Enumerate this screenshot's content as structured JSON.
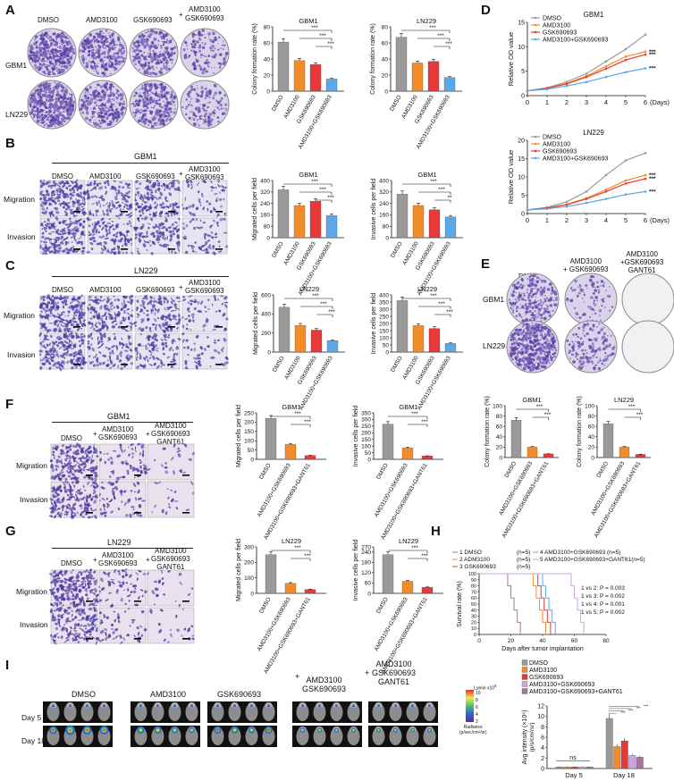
{
  "colors": {
    "grey": "#9a9a9a",
    "orange": "#f28c28",
    "red": "#e8393a",
    "blue": "#5aa8e8",
    "purple": "#c9a7df",
    "mauve": "#a5789a",
    "dark": "#7a7a7a"
  },
  "panels": [
    "A",
    "B",
    "C",
    "D",
    "E",
    "F",
    "G",
    "H",
    "I"
  ],
  "A": {
    "conditions": [
      "DMSO",
      "AMD3100",
      "GSK690693",
      "AMD3100\nGSK690693"
    ],
    "plus": "+",
    "rows": [
      "GBM1",
      "LN229"
    ],
    "charts": [
      {
        "title": "GBM1",
        "ylabel": "Colony formation rate (%)",
        "yticks": [
          "0",
          "20",
          "40",
          "60",
          "80"
        ],
        "ymax": 80,
        "categories": [
          "DMSO",
          "AMD3100",
          "GSK690693",
          "AMD3100+GSK690693"
        ],
        "values": [
          61,
          38,
          33,
          15
        ],
        "sig": [
          "***",
          "***",
          "***"
        ]
      },
      {
        "title": "LN229",
        "ylabel": "Colony formation rate (%)",
        "yticks": [
          "0",
          "20",
          "40",
          "60",
          "80"
        ],
        "ymax": 80,
        "categories": [
          "DMSO",
          "AMD3100",
          "GSK690693",
          "AMD3100+GSK690693"
        ],
        "values": [
          67,
          35,
          37,
          17
        ],
        "sig": [
          "***",
          "***",
          "***"
        ]
      }
    ]
  },
  "B": {
    "cell": "GBM1",
    "conditions": [
      "DMSO",
      "AMD3100",
      "GSK690693",
      "AMD3100\nGSK690693"
    ],
    "plus": "+",
    "rows": [
      "Migration",
      "Invasion"
    ],
    "charts": [
      {
        "title": "GBM1",
        "ylabel": "Migrated cells per field",
        "yticks": [
          "0",
          "80",
          "160",
          "240",
          "320",
          "400"
        ],
        "ymax": 400,
        "categories": [
          "DMSO",
          "AMD3100",
          "GSK690693",
          "AMD3100+GSK690693"
        ],
        "values": [
          335,
          225,
          255,
          155
        ],
        "sig": [
          "***",
          "***",
          "***"
        ]
      },
      {
        "title": "GBM1",
        "ylabel": "Invasive cells per field",
        "yticks": [
          "0",
          "80",
          "160",
          "240",
          "320",
          "400"
        ],
        "ymax": 400,
        "categories": [
          "DMSO",
          "AMD3100",
          "GSK690693",
          "AMD3100+GSK690693"
        ],
        "values": [
          305,
          225,
          195,
          145
        ],
        "sig": [
          "***",
          "***",
          "**"
        ]
      }
    ]
  },
  "C": {
    "cell": "LN229",
    "conditions": [
      "DMSO",
      "AMD3100",
      "GSK690693",
      "AMD3100\nGSK690693"
    ],
    "plus": "+",
    "rows": [
      "Migration",
      "Invasion"
    ],
    "charts": [
      {
        "title": "LN229",
        "ylabel": "Migrated cells per field",
        "yticks": [
          "0",
          "200",
          "400",
          "600"
        ],
        "ymax": 600,
        "categories": [
          "DMSO",
          "AMD3100",
          "GSK690693",
          "AMD3100+GSK690693"
        ],
        "values": [
          470,
          280,
          230,
          120
        ],
        "sig": [
          "***",
          "***",
          "***"
        ]
      },
      {
        "title": "LN229",
        "ylabel": "Invasive cells per field",
        "yticks": [
          "0",
          "50",
          "100",
          "150",
          "200",
          "250",
          "300",
          "350",
          "400"
        ],
        "ymax": 400,
        "categories": [
          "DMSO",
          "AMD3100",
          "GSK690693",
          "AMD3100+GSK690693"
        ],
        "values": [
          360,
          185,
          165,
          60
        ],
        "sig": [
          "***",
          "***",
          "***"
        ]
      }
    ]
  },
  "D": {
    "xlabel": "(Days)",
    "ylabel": "Relative OD value",
    "legend": [
      "DMSO",
      "AMD3100",
      "GSK690693",
      "AMD3100+GSK690693"
    ],
    "sig": [
      "***",
      "***",
      "***"
    ],
    "charts": [
      {
        "title": "GBM1",
        "yticks": [
          "0",
          "5",
          "10",
          "15"
        ],
        "ymax": 15,
        "xticks": [
          "0",
          "1",
          "2",
          "3",
          "4",
          "5",
          "6"
        ],
        "series": [
          [
            1,
            1.6,
            2.8,
            4.5,
            7.0,
            9.5,
            12.5
          ],
          [
            1,
            1.5,
            2.5,
            4.0,
            6.0,
            8.0,
            9.0
          ],
          [
            1,
            1.5,
            2.4,
            3.8,
            5.5,
            7.3,
            8.4
          ],
          [
            1,
            1.3,
            2.0,
            2.8,
            3.8,
            4.8,
            5.6
          ]
        ]
      },
      {
        "title": "LN229",
        "yticks": [
          "0",
          "5",
          "10",
          "15",
          "20"
        ],
        "ymax": 20,
        "xticks": [
          "0",
          "1",
          "2",
          "3",
          "4",
          "5",
          "6"
        ],
        "series": [
          [
            1,
            1.7,
            3.2,
            6.0,
            10.5,
            14.5,
            16.5
          ],
          [
            1,
            1.5,
            2.5,
            4.2,
            6.5,
            9.0,
            10.5
          ],
          [
            1,
            1.5,
            2.4,
            4.0,
            6.0,
            8.2,
            9.5
          ],
          [
            1,
            1.3,
            1.9,
            2.9,
            4.0,
            5.2,
            6.0
          ]
        ]
      }
    ]
  },
  "E": {
    "conditions": [
      "DMSO",
      "AMD3100\n+ GSK690693",
      "AMD3100\n+GSK690693\nGANT61"
    ],
    "rows": [
      "GBM1",
      "LN229"
    ],
    "charts": [
      {
        "title": "GBM1",
        "ylabel": "Colony formation rate (%)",
        "yticks": [
          "0",
          "20",
          "40",
          "60",
          "80",
          "100"
        ],
        "ymax": 100,
        "categories": [
          "DMSO",
          "AMD3100+GSK690693",
          "AMD3100+GSK690693+GANT61"
        ],
        "values": [
          72,
          20,
          7
        ],
        "sig": [
          "***",
          "***"
        ]
      },
      {
        "title": "LN229",
        "ylabel": "Colony formation rate (%)",
        "yticks": [
          "0",
          "20",
          "40",
          "60",
          "80",
          "100"
        ],
        "ymax": 100,
        "categories": [
          "DMSO",
          "AMD3100+GSK690693",
          "AMD3100+GSK690693+GANT61"
        ],
        "values": [
          65,
          20,
          6
        ],
        "sig": [
          "***",
          "***"
        ]
      }
    ]
  },
  "F": {
    "cell": "GBM1",
    "conditions": [
      "DMSO",
      "AMD3100\nGSK690693",
      "AMD3100\nGSK690693\nGANT61"
    ],
    "plus": "+",
    "rows": [
      "Migration",
      "Invasion"
    ],
    "charts": [
      {
        "title": "GBM1",
        "ylabel": "Migrated cells per field",
        "yticks": [
          "0",
          "50",
          "100",
          "150",
          "200",
          "250"
        ],
        "ymax": 250,
        "categories": [
          "DMSO",
          "AMD3100+GSK690693",
          "AMD3100+GSK690693+GANT61"
        ],
        "values": [
          220,
          80,
          20
        ],
        "sig": [
          "***",
          "***"
        ]
      },
      {
        "title": "GBM1",
        "ylabel": "Invasive cells per field",
        "yticks": [
          "0",
          "50",
          "100",
          "150",
          "200",
          "250",
          "300",
          "350"
        ],
        "ymax": 350,
        "categories": [
          "DMSO",
          "AMD3100+GSK690693",
          "AMD3100+GSK690693+GANT61"
        ],
        "values": [
          265,
          85,
          25
        ],
        "sig": [
          "***",
          "***"
        ]
      }
    ]
  },
  "G": {
    "cell": "LN229",
    "conditions": [
      "DMSO",
      "AMD3100\nGSK690693",
      "AMD3100\nGSK690693\nGANT61"
    ],
    "plus": "+",
    "rows": [
      "Migration",
      "Invasion"
    ],
    "charts": [
      {
        "title": "LN229",
        "ylabel": "Migrated cells per field",
        "yticks": [
          "0",
          "100",
          "200",
          "300"
        ],
        "ymax": 300,
        "categories": [
          "DMSO",
          "AMD3100+GSK690693",
          "AMD3100+GSK690693+GANT61"
        ],
        "values": [
          250,
          65,
          25
        ],
        "sig": [
          "***",
          "***"
        ]
      },
      {
        "title": "LN229",
        "ylabel": "Invasive cells per field",
        "yticks": [
          "0",
          "60",
          "120",
          "180",
          "240",
          "270"
        ],
        "ymax": 270,
        "categories": [
          "DMSO",
          "AMD3100+GSK690693",
          "AMD3100+GSK690693+GANT61"
        ],
        "values": [
          225,
          70,
          35
        ],
        "sig": [
          "***",
          "***"
        ]
      }
    ]
  },
  "H": {
    "ylabel": "Survival rate (%)",
    "xlabel": "Days after tumor implantation",
    "yticks": [
      "0",
      "10",
      "20",
      "30",
      "40",
      "50",
      "60",
      "70",
      "80",
      "90",
      "100"
    ],
    "xticks": [
      "0",
      "20",
      "40",
      "60",
      "80"
    ],
    "legend": [
      "1 DMSO",
      "2 ADM3100",
      "3 GSK690693",
      "4 AMD3100+GSK690693 (n=5)",
      "5 AMD3100+GSK690693+GANT61(n=5)"
    ],
    "n": [
      "(n=5)",
      "(n=5)",
      "(n=5)"
    ],
    "stats": [
      "1 vs 2: P = 0.003",
      "1 vs 3: P = 0.002",
      "1 vs 4: P = 0.001",
      "1 vs 5: P = 0.002"
    ],
    "medians": [
      22,
      38,
      41,
      44,
      62
    ]
  },
  "I": {
    "conditions": [
      "DMSO",
      "AMD3100",
      "GSK690693",
      "AMD3100\nGSK690693",
      "AMD3100\nGSK690693\nGANT61"
    ],
    "plus": "+",
    "rows": [
      "Day 5",
      "Day 18"
    ],
    "scale": {
      "title": "Lumin x10",
      "exp": "6",
      "ticks": [
        "10",
        "8",
        "6",
        "4",
        "2"
      ],
      "unit": "Radiance\n(p/sec/cm²/sr)"
    },
    "chart": {
      "ylabel": "Avg intensity (×10⁶)\n(p/s/cm²/sr)",
      "yticks": [
        "0",
        "2",
        "4",
        "6",
        "8",
        "10",
        "12"
      ],
      "ymax": 12,
      "categories": [
        "Day 5",
        "Day 18"
      ],
      "legend": [
        "DMSO",
        "AMD3100",
        "GSK690693",
        "AMD3100+GSK690693",
        "AMD3100+GSK690693+GANT61"
      ],
      "values": [
        [
          0.3,
          0.3,
          0.3,
          0.3,
          0.3
        ],
        [
          9.6,
          4.2,
          5.3,
          2.5,
          2.2
        ]
      ],
      "ns": "ns",
      "sig": [
        "***",
        "***",
        "***",
        "***"
      ]
    }
  }
}
